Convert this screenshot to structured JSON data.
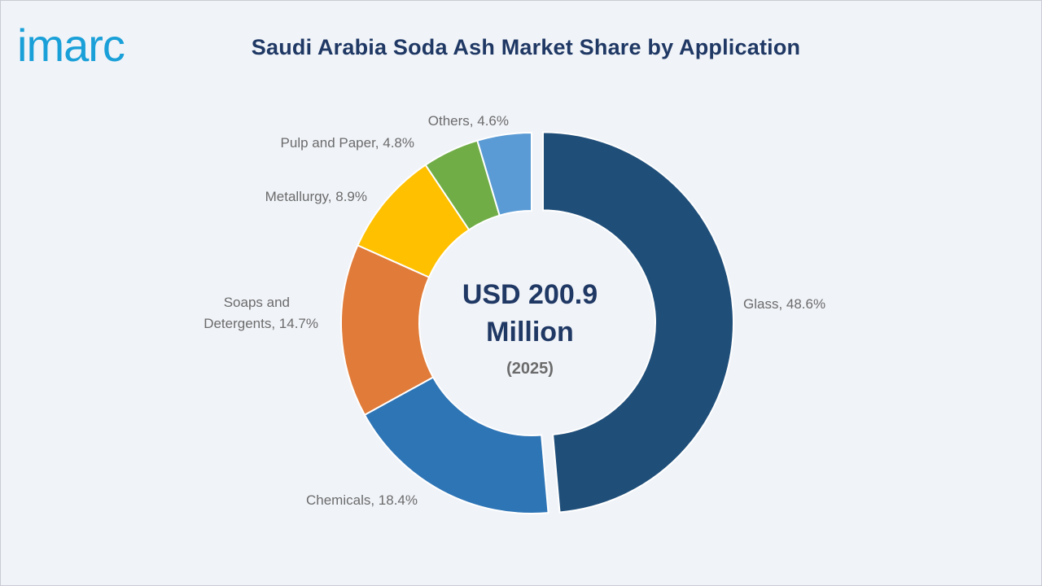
{
  "brand": {
    "logo_text": "imarc",
    "logo_color": "#1aa0d8"
  },
  "chart_data": {
    "type": "pie",
    "donut": true,
    "title": "Saudi Arabia Soda Ash Market Share by Application",
    "center_lines": [
      "USD 200.9",
      "Million"
    ],
    "center_sub": "(2025)",
    "start": "12 o'clock, clockwise",
    "exploded": "Glass",
    "slices": [
      {
        "name": "Glass",
        "value": 48.6,
        "label": "Glass, 48.6%",
        "color": "#1f4e79"
      },
      {
        "name": "Chemicals",
        "value": 18.4,
        "label": "Chemicals, 18.4%",
        "color": "#2e75b6"
      },
      {
        "name": "Soaps and Detergents",
        "value": 14.7,
        "label_lines": [
          "Soaps and",
          "Detergents, 14.7%"
        ],
        "color": "#e07b39"
      },
      {
        "name": "Metallurgy",
        "value": 8.9,
        "label": "Metallurgy, 8.9%",
        "color": "#ffc000"
      },
      {
        "name": "Pulp and Paper",
        "value": 4.8,
        "label": "Pulp and Paper, 4.8%",
        "color": "#70ad47"
      },
      {
        "name": "Others",
        "value": 4.6,
        "label": "Others, 4.6%",
        "color": "#5b9bd5"
      }
    ]
  }
}
